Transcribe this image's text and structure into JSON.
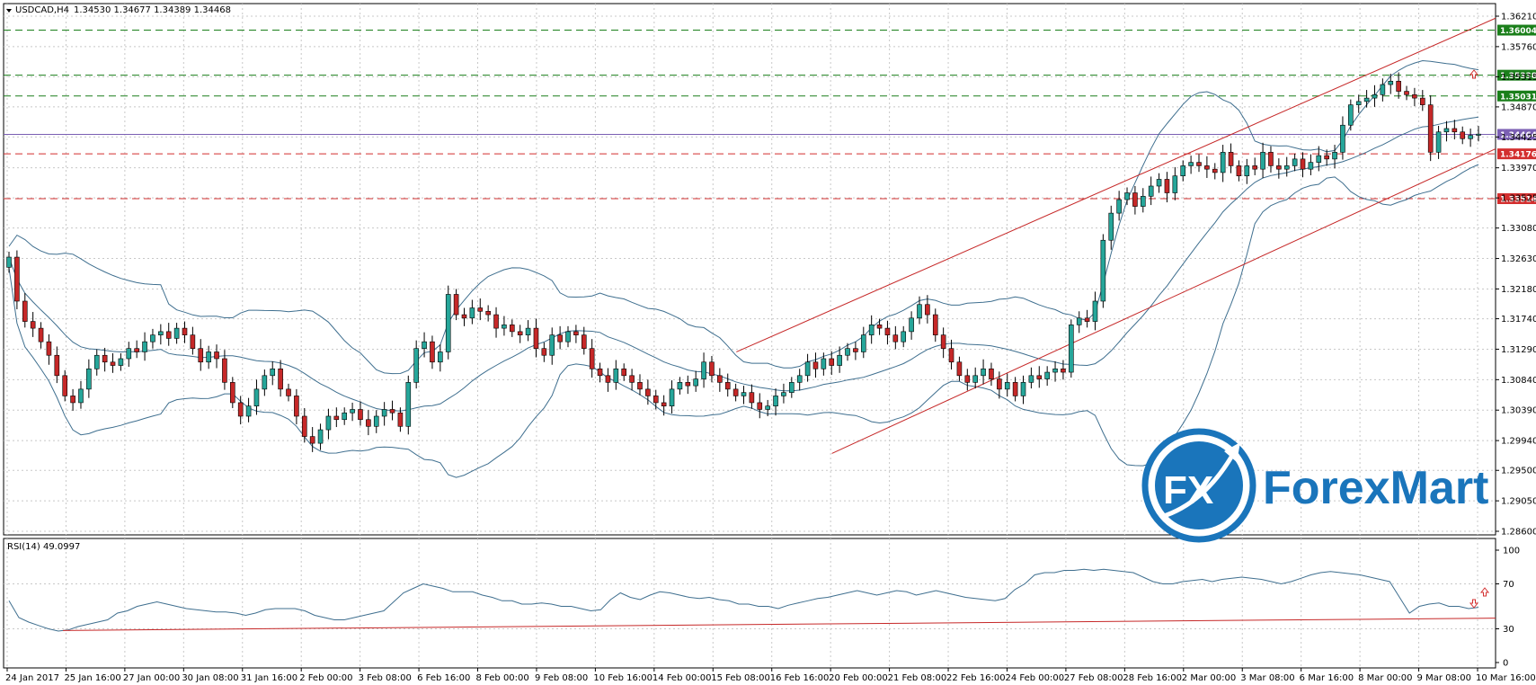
{
  "header": {
    "symbol": "USDCAD,H4",
    "ohlc": "1.34530 1.34677 1.34389 1.34468",
    "dropdown_icon": "triangle-down-icon"
  },
  "indicator": {
    "label": "RSI(14) 49.0997",
    "levels": [
      "100",
      "70",
      "30",
      "0"
    ]
  },
  "logo": {
    "text": "ForexMart",
    "mark_text": "FX",
    "colors": {
      "primary": "#1a75bb"
    }
  },
  "colors": {
    "bull": "#26a69a",
    "bear": "#c62828",
    "bollinger": "#3f6f8f",
    "channel": "#c62828",
    "resistance": "#1b7f1b",
    "support": "#d32f2f",
    "current": "#7b5fb3",
    "grid": "#c8c8c8"
  },
  "chart_data": [
    {
      "type": "candlestick",
      "title": "USDCAD,H4",
      "y_ticks": [
        "1.36210",
        "1.35760",
        "1.35315",
        "1.34870",
        "1.34425",
        "1.33970",
        "1.33525",
        "1.33080",
        "1.32630",
        "1.32180",
        "1.31740",
        "1.31290",
        "1.30840",
        "1.30390",
        "1.29940",
        "1.29500",
        "1.29050",
        "1.28600"
      ],
      "ylim": [
        1.286,
        1.3621
      ],
      "x_ticks": [
        "24 Jan 2017",
        "25 Jan 16:00",
        "27 Jan 00:00",
        "30 Jan 08:00",
        "31 Jan 16:00",
        "2 Feb 00:00",
        "3 Feb 08:00",
        "6 Feb 16:00",
        "8 Feb 00:00",
        "9 Feb 08:00",
        "10 Feb 16:00",
        "14 Feb 00:00",
        "15 Feb 08:00",
        "16 Feb 16:00",
        "20 Feb 00:00",
        "21 Feb 08:00",
        "22 Feb 16:00",
        "24 Feb 00:00",
        "27 Feb 08:00",
        "28 Feb 16:00",
        "2 Mar 00:00",
        "3 Mar 08:00",
        "6 Mar 16:00",
        "8 Mar 00:00",
        "9 Mar 08:00",
        "10 Mar 16:00"
      ],
      "series": [
        {
          "close": [
            1.3265,
            1.32,
            1.317,
            1.316,
            1.314,
            1.312,
            1.309,
            1.306,
            1.305,
            1.307,
            1.31,
            1.312,
            1.311,
            1.3105,
            1.3115,
            1.313,
            1.3125,
            1.314,
            1.315,
            1.3155,
            1.3145,
            1.316,
            1.315,
            1.313,
            1.311,
            1.3125,
            1.3115,
            1.308,
            1.305,
            1.303,
            1.3045,
            1.307,
            1.309,
            1.31,
            1.307,
            1.306,
            1.303,
            1.3,
            1.299,
            1.301,
            1.303,
            1.3025,
            1.3035,
            1.304,
            1.3025,
            1.3015,
            1.303,
            1.304,
            1.3035,
            1.3015,
            1.308,
            1.313,
            1.314,
            1.311,
            1.3125,
            1.321,
            1.318,
            1.3175,
            1.319,
            1.3185,
            1.318,
            1.316,
            1.3165,
            1.3155,
            1.315,
            1.316,
            1.313,
            1.312,
            1.315,
            1.314,
            1.3155,
            1.315,
            1.313,
            1.31,
            1.309,
            1.308,
            1.31,
            1.309,
            1.308,
            1.307,
            1.306,
            1.305,
            1.3045,
            1.307,
            1.308,
            1.3075,
            1.3085,
            1.311,
            1.309,
            1.308,
            1.307,
            1.306,
            1.3065,
            1.305,
            1.304,
            1.3045,
            1.306,
            1.3065,
            1.308,
            1.309,
            1.311,
            1.31,
            1.3115,
            1.3105,
            1.312,
            1.313,
            1.3125,
            1.315,
            1.3165,
            1.316,
            1.315,
            1.314,
            1.3155,
            1.3175,
            1.3195,
            1.318,
            1.315,
            1.313,
            1.311,
            1.309,
            1.308,
            1.309,
            1.31,
            1.3085,
            1.307,
            1.308,
            1.306,
            1.308,
            1.309,
            1.3085,
            1.3095,
            1.31,
            1.3095,
            1.3165,
            1.3175,
            1.317,
            1.32,
            1.329,
            1.333,
            1.335,
            1.336,
            1.334,
            1.3355,
            1.337,
            1.338,
            1.336,
            1.3385,
            1.34,
            1.3405,
            1.34,
            1.3395,
            1.339,
            1.342,
            1.34,
            1.3385,
            1.34,
            1.3395,
            1.342,
            1.34,
            1.3395,
            1.34,
            1.341,
            1.3395,
            1.3405,
            1.3415,
            1.341,
            1.342,
            1.346,
            1.349,
            1.3495,
            1.35,
            1.3505,
            1.352,
            1.3525,
            1.351,
            1.3505,
            1.35,
            1.349,
            1.342,
            1.345,
            1.3455,
            1.345,
            1.344,
            1.3445,
            1.34468
          ]
        }
      ],
      "overlays": {
        "bollinger_bands": true,
        "channel_lines": 3
      },
      "horizontal_levels": [
        {
          "label": "1.36004",
          "value": 1.36004,
          "style": "dashed",
          "color": "#1b7f1b"
        },
        {
          "label": "1.35338",
          "value": 1.35338,
          "style": "dashed",
          "color": "#1b7f1b"
        },
        {
          "label": "1.35031",
          "value": 1.35031,
          "style": "dashed",
          "color": "#1b7f1b"
        },
        {
          "label": "1.34464",
          "value": 1.34464,
          "style": "solid",
          "color": "#7b5fb3"
        },
        {
          "label": "1.34176",
          "value": 1.34176,
          "style": "dashed",
          "color": "#d32f2f"
        },
        {
          "label": "1.33514",
          "value": 1.33514,
          "style": "dashed",
          "color": "#d32f2f"
        }
      ],
      "grid": true
    },
    {
      "type": "line",
      "title": "RSI(14) 49.0997",
      "ylim": [
        0,
        100
      ],
      "y_ticks": [
        "100",
        "70",
        "30",
        "0"
      ],
      "series": [
        {
          "values": [
            55,
            40,
            36,
            33,
            30,
            28,
            29,
            32,
            34,
            36,
            38,
            44,
            46,
            50,
            52,
            54,
            52,
            50,
            48,
            47,
            46,
            45,
            45,
            44,
            42,
            44,
            47,
            48,
            48,
            48,
            46,
            42,
            40,
            38,
            38,
            40,
            42,
            44,
            46,
            54,
            62,
            66,
            70,
            68,
            66,
            63,
            63,
            63,
            60,
            58,
            55,
            55,
            52,
            52,
            53,
            52,
            50,
            50,
            48,
            46,
            47,
            56,
            62,
            58,
            56,
            60,
            63,
            62,
            60,
            58,
            57,
            58,
            56,
            55,
            52,
            52,
            50,
            50,
            48,
            51,
            53,
            55,
            57,
            58,
            60,
            62,
            64,
            62,
            60,
            62,
            64,
            63,
            60,
            62,
            64,
            62,
            60,
            58,
            57,
            56,
            55,
            57,
            65,
            70,
            78,
            80,
            80,
            82,
            82,
            83,
            82,
            83,
            82,
            81,
            80,
            76,
            72,
            70,
            70,
            72,
            73,
            74,
            72,
            74,
            75,
            76,
            75,
            74,
            72,
            70,
            72,
            75,
            78,
            80,
            81,
            80,
            79,
            78,
            76,
            74,
            72,
            58,
            44,
            50,
            52,
            53,
            50,
            50,
            48,
            49.0997
          ]
        }
      ],
      "level_lines": [
        30,
        70
      ],
      "grid": true
    }
  ]
}
